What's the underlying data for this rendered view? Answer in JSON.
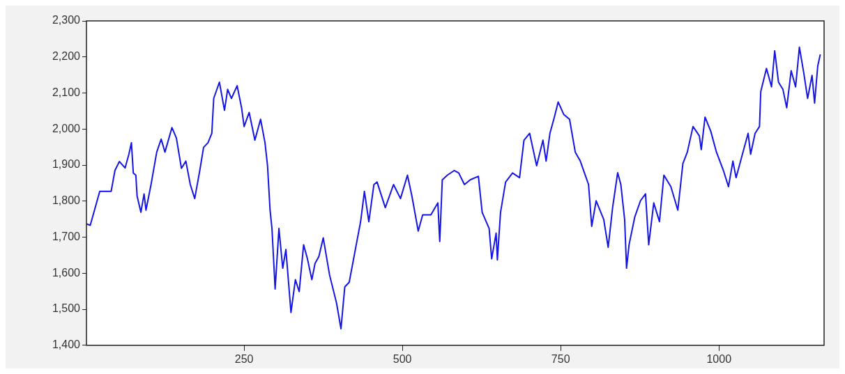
{
  "chart_data": {
    "type": "line",
    "xlim": [
      1,
      1166
    ],
    "xticks": [
      250,
      500,
      750,
      1000
    ],
    "ylim": [
      1400,
      2300
    ],
    "yticks": [
      {
        "value": 1400,
        "label": "1,400"
      },
      {
        "value": 1500,
        "label": "1,500"
      },
      {
        "value": 1600,
        "label": "1,600"
      },
      {
        "value": 1700,
        "label": "1,700"
      },
      {
        "value": 1800,
        "label": "1,800"
      },
      {
        "value": 1900,
        "label": "1,900"
      },
      {
        "value": 2000,
        "label": "2,000"
      },
      {
        "value": 2100,
        "label": "2,100"
      },
      {
        "value": 2200,
        "label": "2,200"
      },
      {
        "value": 2300,
        "label": "2,300"
      }
    ],
    "grid": false,
    "legend": false,
    "marker": "none",
    "line_style": "solid",
    "series": [
      {
        "color": "#1414e6",
        "x": [
          1,
          7,
          22,
          40,
          46,
          53,
          62,
          68,
          72,
          75,
          79,
          81,
          87,
          92,
          95,
          103,
          112,
          119,
          125,
          136,
          143,
          151,
          158,
          165,
          172,
          180,
          186,
          193,
          199,
          202,
          211,
          219,
          224,
          230,
          239,
          246,
          250,
          258,
          267,
          276,
          283,
          287,
          291,
          294,
          299,
          305,
          311,
          316,
          324,
          331,
          337,
          344,
          350,
          357,
          362,
          368,
          375,
          385,
          396,
          403,
          409,
          416,
          427,
          434,
          440,
          447,
          455,
          460,
          473,
          486,
          497,
          508,
          515,
          525,
          532,
          545,
          556,
          559,
          563,
          571,
          582,
          589,
          598,
          607,
          620,
          626,
          637,
          641,
          648,
          650,
          655,
          663,
          674,
          685,
          692,
          701,
          712,
          722,
          727,
          733,
          740,
          746,
          755,
          764,
          773,
          781,
          794,
          799,
          806,
          818,
          825,
          832,
          840,
          845,
          851,
          854,
          858,
          867,
          876,
          884,
          889,
          897,
          906,
          913,
          924,
          935,
          943,
          950,
          959,
          969,
          972,
          978,
          987,
          996,
          1007,
          1015,
          1022,
          1027,
          1035,
          1046,
          1050,
          1057,
          1064,
          1066,
          1075,
          1083,
          1088,
          1094,
          1101,
          1107,
          1114,
          1121,
          1127,
          1134,
          1140,
          1147,
          1151,
          1156,
          1160
        ],
        "values": [
          1737,
          1733,
          1827,
          1827,
          1885,
          1910,
          1892,
          1930,
          1962,
          1878,
          1872,
          1814,
          1769,
          1820,
          1775,
          1846,
          1936,
          1972,
          1936,
          2004,
          1975,
          1891,
          1911,
          1846,
          1807,
          1885,
          1949,
          1962,
          1988,
          2085,
          2130,
          2052,
          2110,
          2085,
          2120,
          2059,
          2007,
          2046,
          1969,
          2027,
          1962,
          1898,
          1775,
          1724,
          1556,
          1724,
          1614,
          1666,
          1491,
          1582,
          1549,
          1679,
          1640,
          1582,
          1627,
          1646,
          1698,
          1595,
          1517,
          1446,
          1562,
          1575,
          1678,
          1743,
          1827,
          1743,
          1846,
          1853,
          1782,
          1846,
          1807,
          1872,
          1814,
          1717,
          1762,
          1762,
          1795,
          1688,
          1859,
          1872,
          1885,
          1878,
          1846,
          1859,
          1869,
          1769,
          1724,
          1640,
          1711,
          1637,
          1769,
          1853,
          1878,
          1865,
          1969,
          1988,
          1898,
          1969,
          1911,
          1988,
          2033,
          2075,
          2040,
          2027,
          1936,
          1911,
          1846,
          1730,
          1801,
          1749,
          1672,
          1782,
          1879,
          1846,
          1749,
          1614,
          1679,
          1756,
          1801,
          1820,
          1679,
          1795,
          1743,
          1872,
          1840,
          1775,
          1904,
          1936,
          2007,
          1981,
          1943,
          2033,
          1994,
          1936,
          1885,
          1840,
          1911,
          1865,
          1917,
          1988,
          1930,
          1988,
          2007,
          2104,
          2168,
          2117,
          2217,
          2130,
          2110,
          2059,
          2162,
          2117,
          2227,
          2155,
          2085,
          2149,
          2072,
          2175,
          2207
        ]
      }
    ]
  }
}
